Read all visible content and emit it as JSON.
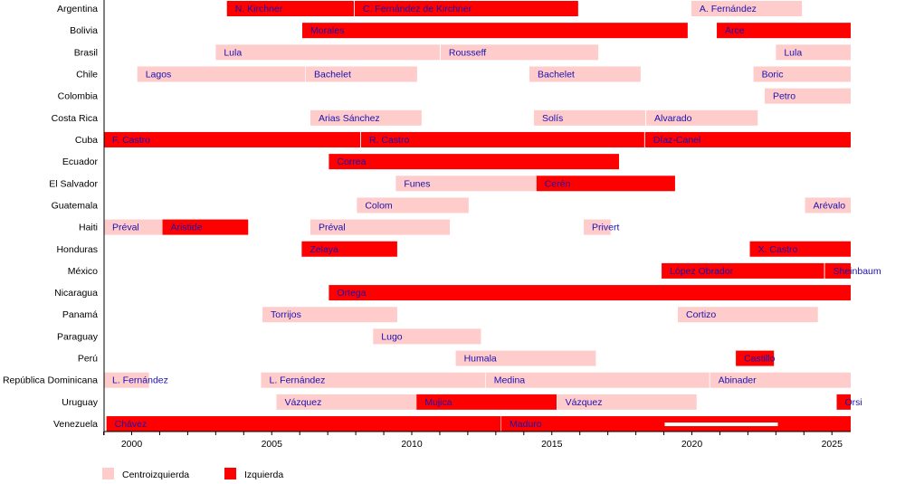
{
  "chart_data": {
    "type": "timeline",
    "title": "",
    "xlim": [
      1999.0,
      2025.67
    ],
    "x_ticks": [
      2000,
      2005,
      2010,
      2015,
      2020,
      2025
    ],
    "colors": {
      "Centroizquierda": "#ffcccc",
      "Izquierda": "#ff0000",
      "label": "#1a10b0"
    },
    "legend": {
      "placement": "bottom-left",
      "entries": [
        {
          "name": "Centroizquierda",
          "color": "#ffcccc"
        },
        {
          "name": "Izquierda",
          "color": "#ff0000"
        }
      ]
    },
    "rows": [
      {
        "country": "Argentina",
        "terms": [
          {
            "name": "N. Kirchner",
            "start": 2003.4,
            "end": 2007.93,
            "type": "Izquierda"
          },
          {
            "name": "C. Fernández de Kirchner",
            "start": 2007.96,
            "end": 2015.94,
            "type": "Izquierda"
          },
          {
            "name": "A. Fernández",
            "start": 2019.98,
            "end": 2023.93,
            "type": "Centroizquierda"
          }
        ]
      },
      {
        "country": "Bolivia",
        "terms": [
          {
            "name": "Morales",
            "start": 2006.09,
            "end": 2019.85,
            "type": "Izquierda"
          },
          {
            "name": "Arce",
            "start": 2020.89,
            "end": 2025.67,
            "type": "Izquierda"
          }
        ]
      },
      {
        "country": "Brasil",
        "terms": [
          {
            "name": "Lula",
            "start": 2003.0,
            "end": 2011.0,
            "type": "Centroizquierda"
          },
          {
            "name": "Rousseff",
            "start": 2011.03,
            "end": 2016.66,
            "type": "Centroizquierda"
          },
          {
            "name": "Lula",
            "start": 2023.0,
            "end": 2025.67,
            "type": "Centroizquierda"
          }
        ]
      },
      {
        "country": "Chile",
        "terms": [
          {
            "name": "Lagos",
            "start": 2000.2,
            "end": 2006.2,
            "type": "Centroizquierda"
          },
          {
            "name": "Bachelet",
            "start": 2006.22,
            "end": 2010.19,
            "type": "Centroizquierda"
          },
          {
            "name": "Bachelet",
            "start": 2014.2,
            "end": 2018.17,
            "type": "Centroizquierda"
          },
          {
            "name": "Boric",
            "start": 2022.2,
            "end": 2025.67,
            "type": "Centroizquierda"
          }
        ]
      },
      {
        "country": "Colombia",
        "terms": [
          {
            "name": "Petro",
            "start": 2022.6,
            "end": 2025.67,
            "type": "Centroizquierda"
          }
        ]
      },
      {
        "country": "Costa Rica",
        "terms": [
          {
            "name": "Arias Sánchez",
            "start": 2006.38,
            "end": 2010.35,
            "type": "Centroizquierda"
          },
          {
            "name": "Solís",
            "start": 2014.36,
            "end": 2018.34,
            "type": "Centroizquierda"
          },
          {
            "name": "Alvarado",
            "start": 2018.37,
            "end": 2022.35,
            "type": "Centroizquierda"
          }
        ]
      },
      {
        "country": "Cuba",
        "terms": [
          {
            "name": "F. Castro",
            "start": 1999.0,
            "end": 2008.16,
            "type": "Izquierda"
          },
          {
            "name": "R. Castro",
            "start": 2008.19,
            "end": 2018.3,
            "type": "Izquierda"
          },
          {
            "name": "Díaz-Canel",
            "start": 2018.33,
            "end": 2025.67,
            "type": "Izquierda"
          }
        ]
      },
      {
        "country": "Ecuador",
        "terms": [
          {
            "name": "Correa",
            "start": 2007.04,
            "end": 2017.4,
            "type": "Izquierda"
          }
        ]
      },
      {
        "country": "El Salvador",
        "terms": [
          {
            "name": "Funes",
            "start": 2009.43,
            "end": 2014.43,
            "type": "Centroizquierda"
          },
          {
            "name": "Cerén",
            "start": 2014.45,
            "end": 2019.4,
            "type": "Izquierda"
          }
        ]
      },
      {
        "country": "Guatemala",
        "terms": [
          {
            "name": "Colom",
            "start": 2008.04,
            "end": 2012.03,
            "type": "Centroizquierda"
          },
          {
            "name": "Arévalo",
            "start": 2024.04,
            "end": 2025.67,
            "type": "Centroizquierda"
          }
        ]
      },
      {
        "country": "Haiti",
        "terms": [
          {
            "name": "Préval",
            "start": 1999.0,
            "end": 2001.1,
            "type": "Centroizquierda"
          },
          {
            "name": "Aristide",
            "start": 2001.1,
            "end": 2004.16,
            "type": "Izquierda"
          },
          {
            "name": "Préval",
            "start": 2006.38,
            "end": 2011.36,
            "type": "Centroizquierda"
          },
          {
            "name": "Privert",
            "start": 2016.14,
            "end": 2017.1,
            "type": "Centroizquierda"
          }
        ]
      },
      {
        "country": "Honduras",
        "terms": [
          {
            "name": "Zelaya",
            "start": 2006.07,
            "end": 2009.48,
            "type": "Izquierda"
          },
          {
            "name": "X. Castro",
            "start": 2022.07,
            "end": 2025.67,
            "type": "Izquierda"
          }
        ]
      },
      {
        "country": "México",
        "terms": [
          {
            "name": "López Obrador",
            "start": 2018.92,
            "end": 2024.72,
            "type": "Izquierda"
          },
          {
            "name": "Sheinbaum",
            "start": 2024.75,
            "end": 2025.67,
            "type": "Izquierda"
          }
        ]
      },
      {
        "country": "Nicaragua",
        "terms": [
          {
            "name": "Ortega",
            "start": 2007.04,
            "end": 2025.67,
            "type": "Izquierda"
          }
        ]
      },
      {
        "country": "Panamá",
        "terms": [
          {
            "name": "Torrijos",
            "start": 2004.67,
            "end": 2009.48,
            "type": "Centroizquierda"
          },
          {
            "name": "Cortizo",
            "start": 2019.5,
            "end": 2024.5,
            "type": "Centroizquierda"
          }
        ]
      },
      {
        "country": "Paraguay",
        "terms": [
          {
            "name": "Lugo",
            "start": 2008.62,
            "end": 2012.47,
            "type": "Centroizquierda"
          }
        ]
      },
      {
        "country": "Perú",
        "terms": [
          {
            "name": "Humala",
            "start": 2011.57,
            "end": 2016.57,
            "type": "Centroizquierda"
          },
          {
            "name": "Castillo",
            "start": 2021.57,
            "end": 2022.93,
            "type": "Izquierda"
          }
        ]
      },
      {
        "country": "República Dominicana",
        "terms": [
          {
            "name": "L. Fernández",
            "start": 1999.0,
            "end": 2000.62,
            "type": "Centroizquierda"
          },
          {
            "name": "L. Fernández",
            "start": 2004.62,
            "end": 2012.62,
            "type": "Centroizquierda"
          },
          {
            "name": "Medina",
            "start": 2012.64,
            "end": 2020.62,
            "type": "Centroizquierda"
          },
          {
            "name": "Abinader",
            "start": 2020.65,
            "end": 2025.67,
            "type": "Centroizquierda"
          }
        ]
      },
      {
        "country": "Uruguay",
        "terms": [
          {
            "name": "Vázquez",
            "start": 2005.17,
            "end": 2010.17,
            "type": "Centroizquierda"
          },
          {
            "name": "Mujica",
            "start": 2010.17,
            "end": 2015.17,
            "type": "Izquierda"
          },
          {
            "name": "Vázquez",
            "start": 2015.19,
            "end": 2020.17,
            "type": "Centroizquierda"
          },
          {
            "name": "Orsi",
            "start": 2025.17,
            "end": 2025.67,
            "type": "Izquierda"
          }
        ]
      },
      {
        "country": "Venezuela",
        "terms": [
          {
            "name": "Chávez",
            "start": 1999.1,
            "end": 2013.18,
            "type": "Izquierda"
          },
          {
            "name": "Maduro",
            "start": 2013.2,
            "end": 2025.67,
            "type": "Izquierda",
            "stripe": [
              2019.03,
              2023.07
            ]
          }
        ]
      }
    ]
  }
}
